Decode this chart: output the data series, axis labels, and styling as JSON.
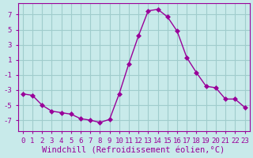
{
  "x": [
    0,
    1,
    2,
    3,
    4,
    5,
    6,
    7,
    8,
    9,
    10,
    11,
    12,
    13,
    14,
    15,
    16,
    17,
    18,
    19,
    20,
    21,
    22,
    23
  ],
  "y": [
    -3.5,
    -3.7,
    -5.0,
    -5.8,
    -6.0,
    -6.2,
    -6.8,
    -7.0,
    -7.3,
    -6.9,
    -3.5,
    0.5,
    4.2,
    7.5,
    7.7,
    6.7,
    4.8,
    1.3,
    -0.7,
    -2.5,
    -2.7,
    -4.2,
    -4.2,
    -5.3
  ],
  "line_color": "#990099",
  "marker": "D",
  "marker_size": 3,
  "bg_color": "#c8eaea",
  "grid_color": "#a0cccc",
  "xlabel": "Windchill (Refroidissement éolien,°C)",
  "xlabel_fontsize": 7.5,
  "ylim": [
    -8.5,
    8.5
  ],
  "xlim": [
    -0.5,
    23.5
  ],
  "yticks": [
    -7,
    -5,
    -3,
    -1,
    1,
    3,
    5,
    7
  ],
  "xticks": [
    0,
    1,
    2,
    3,
    4,
    5,
    6,
    7,
    8,
    9,
    10,
    11,
    12,
    13,
    14,
    15,
    16,
    17,
    18,
    19,
    20,
    21,
    22,
    23
  ],
  "tick_fontsize": 6.5
}
